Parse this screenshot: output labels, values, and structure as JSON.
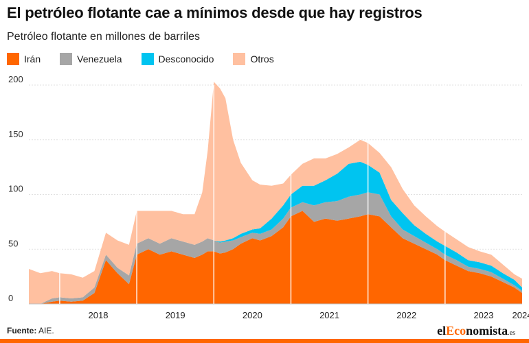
{
  "title": "El petróleo flotante cae a mínimos desde que hay registros",
  "subtitle": "Petróleo flotante en millones de barriles",
  "legend": [
    {
      "name": "Irán",
      "color": "#ff6600"
    },
    {
      "name": "Venezuela",
      "color": "#a6a6a6"
    },
    {
      "name": "Desconocido",
      "color": "#00c4f0"
    },
    {
      "name": "Otros",
      "color": "#ffc0a0"
    }
  ],
  "source_label": "Fuente:",
  "source_text": "AIE.",
  "brand": {
    "pre": "el",
    "accent": "Eco",
    "post": "nomista",
    "tld": ".es"
  },
  "chart_data": {
    "type": "area",
    "stacked": true,
    "title": "El petróleo flotante cae a mínimos desde que hay registros",
    "ylabel": "Petróleo flotante en millones de barriles",
    "ylim": [
      0,
      200
    ],
    "yticks": [
      0,
      50,
      100,
      150,
      200
    ],
    "x": [
      2017.6,
      2017.75,
      2017.9,
      2018.0,
      2018.15,
      2018.3,
      2018.45,
      2018.6,
      2018.75,
      2018.9,
      2019.0,
      2019.15,
      2019.3,
      2019.45,
      2019.6,
      2019.75,
      2019.85,
      2019.92,
      2020.0,
      2020.08,
      2020.15,
      2020.25,
      2020.35,
      2020.5,
      2020.6,
      2020.75,
      2020.9,
      2021.0,
      2021.15,
      2021.3,
      2021.45,
      2021.6,
      2021.75,
      2021.9,
      2022.0,
      2022.15,
      2022.3,
      2022.45,
      2022.6,
      2022.75,
      2022.9,
      2023.0,
      2023.15,
      2023.3,
      2023.45,
      2023.6,
      2023.75,
      2023.9,
      2024.0
    ],
    "xticks": [
      2018,
      2019,
      2020,
      2021,
      2022,
      2023,
      2024
    ],
    "series": [
      {
        "name": "Irán",
        "values": [
          0,
          0,
          2,
          3,
          2,
          3,
          10,
          40,
          28,
          18,
          45,
          50,
          45,
          48,
          45,
          42,
          45,
          48,
          48,
          46,
          47,
          50,
          55,
          60,
          58,
          62,
          70,
          80,
          85,
          75,
          78,
          76,
          78,
          80,
          82,
          80,
          70,
          60,
          55,
          50,
          45,
          40,
          35,
          30,
          28,
          25,
          20,
          15,
          10
        ]
      },
      {
        "name": "Venezuela",
        "values": [
          0,
          0,
          3,
          3,
          3,
          3,
          5,
          5,
          5,
          8,
          10,
          10,
          10,
          12,
          12,
          12,
          12,
          12,
          10,
          10,
          10,
          8,
          6,
          5,
          6,
          6,
          8,
          8,
          8,
          15,
          15,
          18,
          20,
          20,
          20,
          20,
          10,
          8,
          7,
          6,
          5,
          5,
          5,
          4,
          4,
          4,
          3,
          2,
          2
        ]
      },
      {
        "name": "Desconocido",
        "values": [
          0,
          0,
          0,
          0,
          0,
          0,
          0,
          0,
          0,
          0,
          0,
          0,
          0,
          0,
          0,
          0,
          0,
          0,
          0,
          1,
          1,
          2,
          3,
          3,
          5,
          10,
          12,
          12,
          15,
          18,
          20,
          25,
          30,
          30,
          25,
          20,
          15,
          15,
          10,
          8,
          7,
          8,
          7,
          6,
          6,
          6,
          5,
          5,
          3
        ]
      },
      {
        "name": "Otros",
        "values": [
          32,
          28,
          25,
          22,
          22,
          18,
          15,
          20,
          25,
          28,
          30,
          25,
          30,
          25,
          25,
          28,
          45,
          80,
          145,
          140,
          130,
          90,
          65,
          45,
          40,
          30,
          20,
          18,
          20,
          25,
          20,
          18,
          15,
          20,
          20,
          18,
          30,
          22,
          18,
          16,
          14,
          13,
          12,
          12,
          10,
          10,
          8,
          5,
          8
        ]
      }
    ]
  }
}
